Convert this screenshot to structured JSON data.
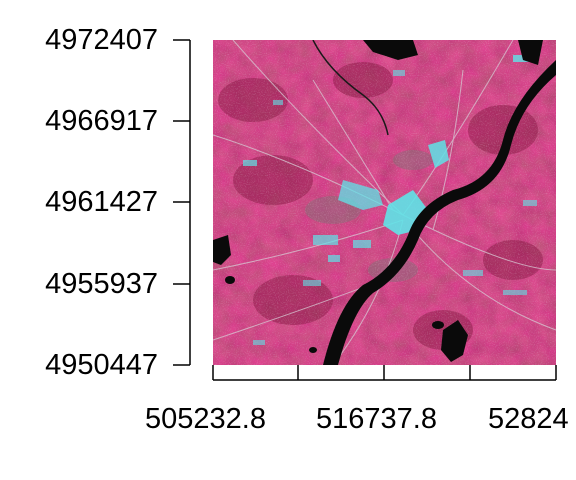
{
  "map": {
    "kind": "false-color satellite raster (NIR-red-green composite)",
    "colors": {
      "vegetation": "#c8245e",
      "vegetation_dark": "#8e1e4a",
      "urban": "#5fe3e8",
      "water": "#0a0a0a",
      "bare": "#8a6a78"
    }
  },
  "axes": {
    "y_ticks": [
      "4972407",
      "4966917",
      "4961427",
      "4955937",
      "4950447"
    ],
    "x_ticks": [
      "505232.8",
      "516737.8",
      "52824"
    ]
  }
}
